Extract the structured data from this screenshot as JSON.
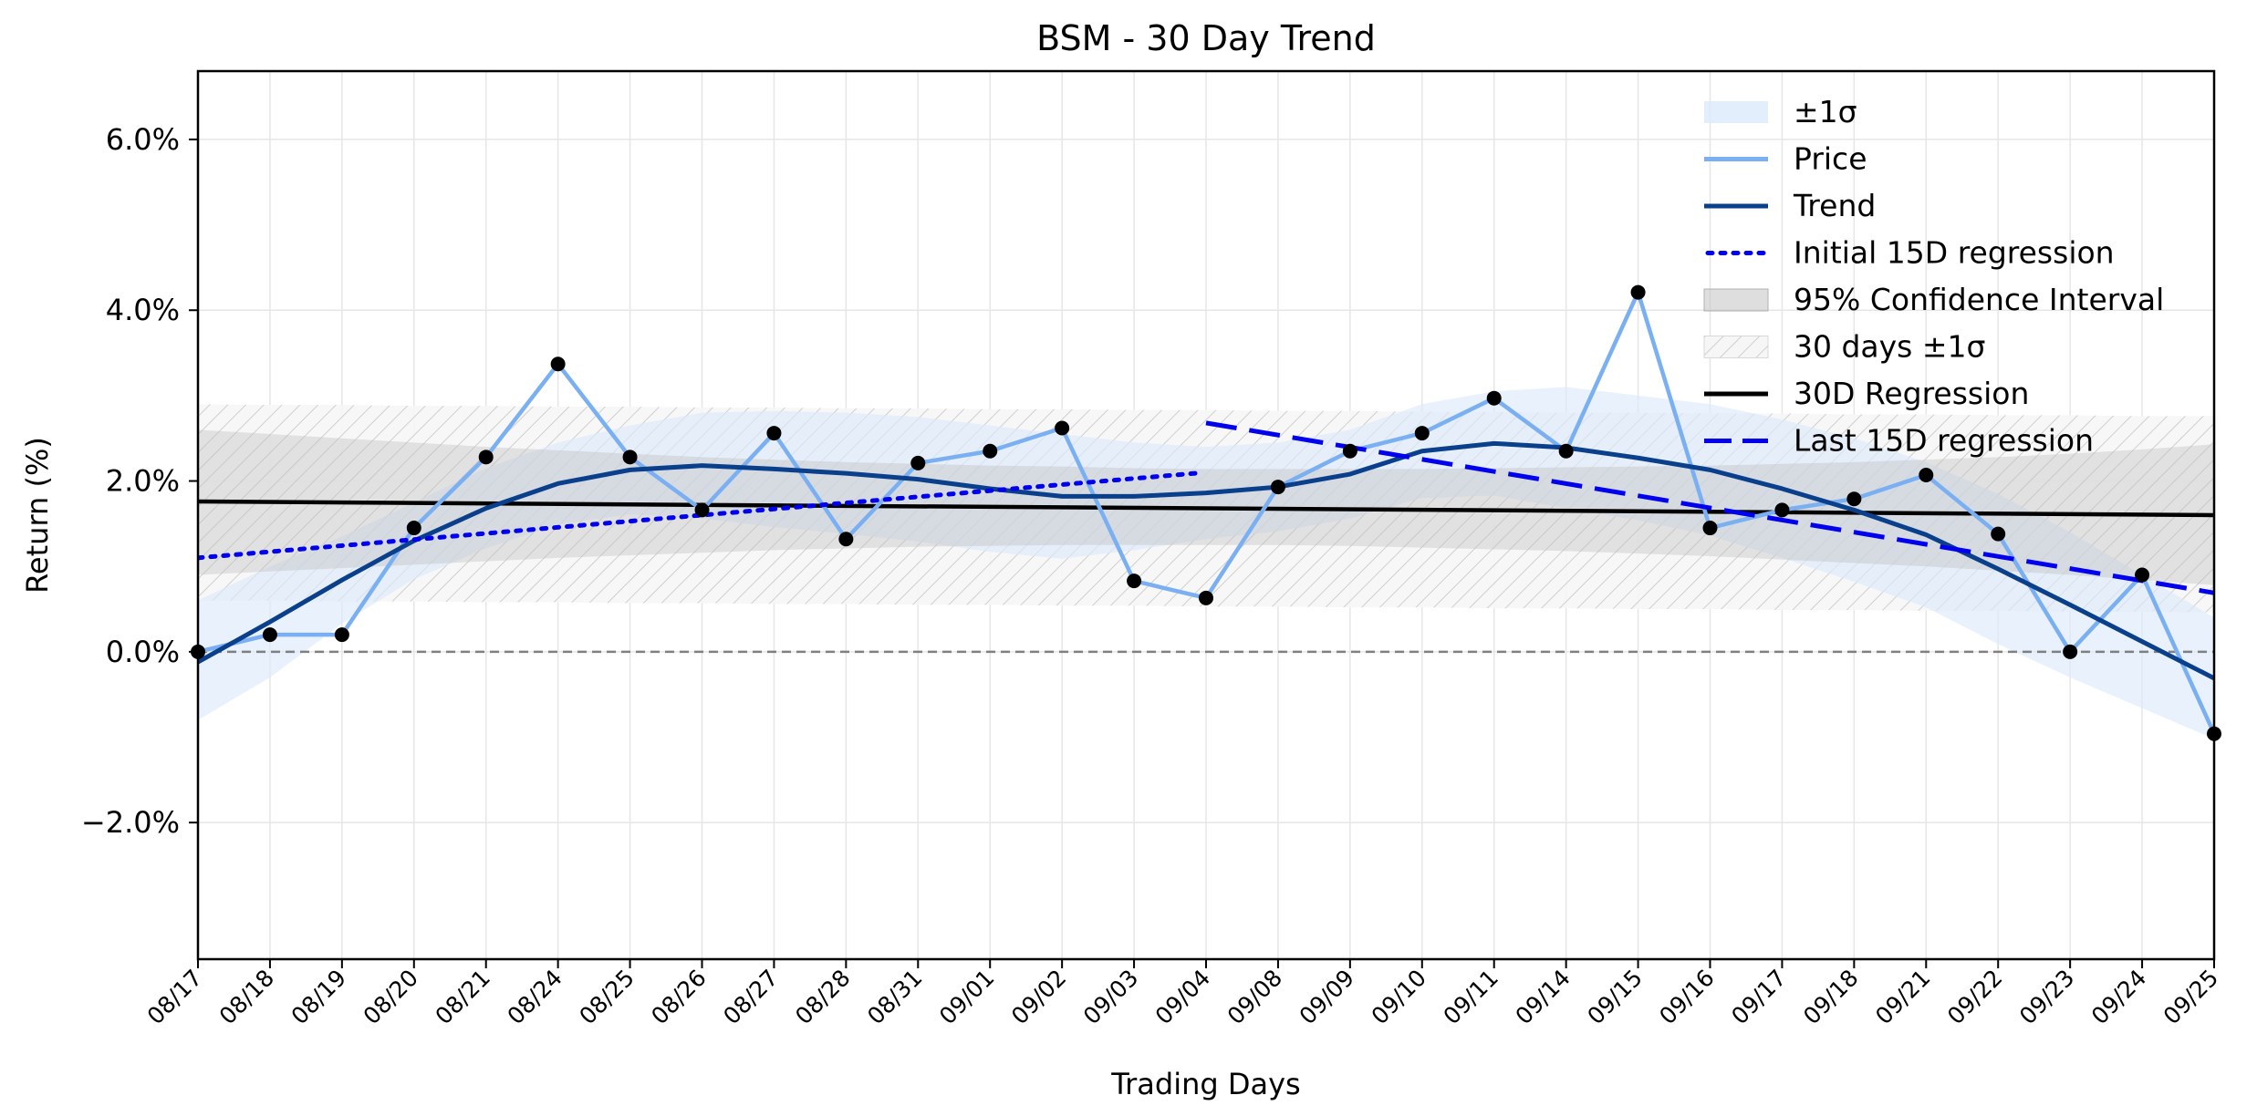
{
  "chart_data": {
    "type": "line",
    "title": "BSM - 30 Day Trend",
    "xlabel": "Trading Days",
    "ylabel": "Return (%)",
    "ylim": [
      -3.6,
      6.8
    ],
    "yticks": [
      -2.0,
      0.0,
      2.0,
      4.0,
      6.0
    ],
    "ytick_labels": [
      "−2.0%",
      "0.0%",
      "2.0%",
      "4.0%",
      "6.0%"
    ],
    "grid": true,
    "legend_position": "top-right",
    "categories": [
      "08/17",
      "08/18",
      "08/19",
      "08/20",
      "08/21",
      "08/24",
      "08/25",
      "08/26",
      "08/27",
      "08/28",
      "08/31",
      "09/01",
      "09/02",
      "09/03",
      "09/04",
      "09/08",
      "09/09",
      "09/10",
      "09/11",
      "09/14",
      "09/15",
      "09/16",
      "09/17",
      "09/18",
      "09/21",
      "09/22",
      "09/23",
      "09/24",
      "09/25"
    ],
    "legend": [
      "±1σ",
      "Price",
      "Trend",
      "Initial 15D regression",
      "95% Confidence Interval",
      "30 days ±1σ",
      "30D Regression",
      "Last 15D regression"
    ],
    "series": [
      {
        "name": "Price",
        "color": "#7ab0f2",
        "values": [
          0.0,
          0.2,
          0.2,
          1.45,
          2.28,
          3.37,
          2.28,
          1.66,
          2.56,
          1.32,
          2.21,
          2.35,
          2.62,
          0.83,
          0.63,
          1.93,
          2.35,
          2.56,
          2.97,
          2.35,
          4.21,
          1.45,
          1.66,
          1.79,
          2.07,
          1.38,
          0.0,
          0.9,
          -0.96
        ]
      },
      {
        "name": "Trend",
        "color": "#0a3f8c",
        "values": [
          -0.12,
          0.35,
          0.84,
          1.3,
          1.68,
          1.97,
          2.13,
          2.18,
          2.14,
          2.09,
          2.02,
          1.91,
          1.82,
          1.82,
          1.86,
          1.93,
          2.08,
          2.35,
          2.44,
          2.39,
          2.27,
          2.13,
          1.91,
          1.66,
          1.37,
          0.97,
          0.55,
          0.12,
          -0.31
        ]
      },
      {
        "name": "±1σ",
        "color": "#dbeafb",
        "upper": [
          0.6,
          1.0,
          1.35,
          1.75,
          2.15,
          2.45,
          2.65,
          2.8,
          2.82,
          2.8,
          2.75,
          2.65,
          2.55,
          2.45,
          2.4,
          2.45,
          2.6,
          2.9,
          3.05,
          3.1,
          3.0,
          2.9,
          2.72,
          2.5,
          2.22,
          1.85,
          1.4,
          0.9,
          0.4
        ],
        "lower": [
          -0.8,
          -0.3,
          0.33,
          0.85,
          1.21,
          1.49,
          1.61,
          1.56,
          1.46,
          1.38,
          1.29,
          1.17,
          1.09,
          1.19,
          1.32,
          1.41,
          1.56,
          1.8,
          1.83,
          1.68,
          1.54,
          1.36,
          1.1,
          0.82,
          0.52,
          0.09,
          -0.3,
          -0.66,
          -1.02
        ]
      },
      {
        "name": "Initial 15D regression",
        "color": "#0000ee",
        "start": 1.1,
        "end": 2.09,
        "x_start": "08/17",
        "x_end": "09/04"
      },
      {
        "name": "Last 15D regression",
        "color": "#0000ee",
        "start": 2.68,
        "end": 0.69,
        "x_start": "09/04",
        "x_end": "09/25"
      },
      {
        "name": "30D Regression",
        "color": "#000000",
        "start": 1.76,
        "end": 1.6
      },
      {
        "name": "95% Confidence Interval",
        "color": "#bdbdbd",
        "upper": [
          2.6,
          2.55,
          2.5,
          2.45,
          2.4,
          2.36,
          2.32,
          2.28,
          2.25,
          2.22,
          2.2,
          2.18,
          2.17,
          2.15,
          2.14,
          2.14,
          2.14,
          2.14,
          2.15,
          2.16,
          2.17,
          2.18,
          2.2,
          2.22,
          2.25,
          2.28,
          2.32,
          2.37,
          2.43
        ],
        "lower": [
          0.9,
          0.94,
          0.98,
          1.02,
          1.06,
          1.1,
          1.13,
          1.16,
          1.19,
          1.21,
          1.23,
          1.24,
          1.25,
          1.25,
          1.25,
          1.25,
          1.24,
          1.22,
          1.2,
          1.18,
          1.15,
          1.12,
          1.08,
          1.04,
          1.0,
          0.95,
          0.9,
          0.84,
          0.78
        ]
      },
      {
        "name": "30 days ±1σ",
        "color": "#c8c8c8",
        "upper": [
          2.9,
          2.89,
          2.89,
          2.88,
          2.88,
          2.87,
          2.87,
          2.86,
          2.86,
          2.85,
          2.85,
          2.84,
          2.84,
          2.83,
          2.83,
          2.82,
          2.82,
          2.81,
          2.81,
          2.8,
          2.8,
          2.79,
          2.79,
          2.78,
          2.78,
          2.77,
          2.77,
          2.76,
          2.76
        ],
        "lower": [
          0.6,
          0.6,
          0.59,
          0.59,
          0.58,
          0.58,
          0.57,
          0.57,
          0.56,
          0.56,
          0.55,
          0.55,
          0.54,
          0.54,
          0.53,
          0.53,
          0.52,
          0.52,
          0.51,
          0.51,
          0.5,
          0.5,
          0.49,
          0.49,
          0.48,
          0.48,
          0.47,
          0.47,
          0.46
        ]
      }
    ],
    "zero_line": {
      "y": 0.0,
      "color": "#808080"
    }
  }
}
